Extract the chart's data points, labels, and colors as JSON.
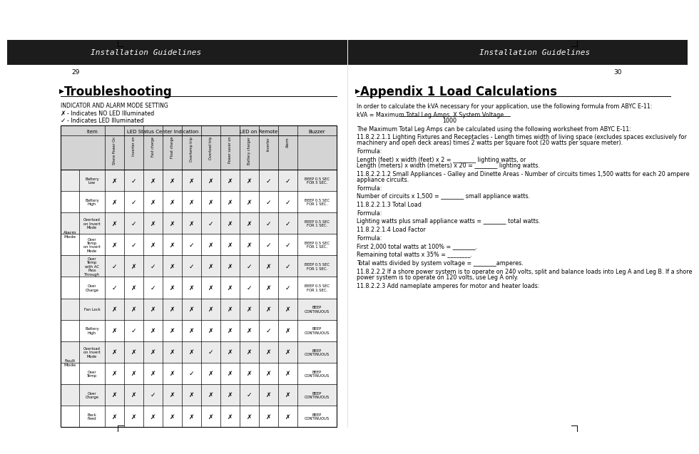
{
  "page_bg": "#ffffff",
  "header_bg": "#1c1c1c",
  "header_text": "#ffffff",
  "header_left": "Installation Guidelines",
  "header_right": "Installation Guidelines",
  "page_num_left": "29",
  "page_num_right": "30",
  "left_section_title": "Troubleshooting",
  "left_subtitle": "INDICATOR AND ALARM MODE SETTING",
  "left_legend1": "- Indicates NO LED Illuminated",
  "left_legend2": "- Indicates LED Illuminated",
  "right_section_title": "Appendix 1 Load Calculations",
  "right_body_lines": [
    {
      "text": "In order to calculate the kVA necessary for your application, use the following formula from ABYC E-11:",
      "indent": 0,
      "style": "normal"
    },
    {
      "text": "",
      "indent": 0,
      "style": "blank_small"
    },
    {
      "text": "kVA = Maximum Total Leg Amps. X  System Voltage",
      "indent": 0,
      "style": "normal"
    },
    {
      "text": "1000",
      "indent": 120,
      "style": "fraction_denom"
    },
    {
      "text": "",
      "indent": 0,
      "style": "blank_small"
    },
    {
      "text": "The Maximum Total Leg Amps can be calculated using the following worksheet from ABYC E-11:",
      "indent": 0,
      "style": "normal"
    },
    {
      "text": "",
      "indent": 0,
      "style": "blank_small"
    },
    {
      "text": "11.8.2.2.1.1     Lighting Fixtures and Receptacles - Length times width of living space (excludes spaces exclusively for machinery and open deck areas) times 2 watts per square foot (20 watts per square meter).",
      "indent": 0,
      "style": "normal"
    },
    {
      "text": "",
      "indent": 0,
      "style": "blank_small"
    },
    {
      "text": "Formula:",
      "indent": 0,
      "style": "normal"
    },
    {
      "text": "",
      "indent": 0,
      "style": "blank_small"
    },
    {
      "text": "Length (feet) x width (feet) x 2 = ________ lighting watts, or",
      "indent": 0,
      "style": "normal"
    },
    {
      "text": "Length (meters) x width (meters) x 20 = ________ lighting watts.",
      "indent": 0,
      "style": "normal"
    },
    {
      "text": "",
      "indent": 0,
      "style": "blank_small"
    },
    {
      "text": "11.8.2.2.1.2     Small Appliances - Galley and Dinette Areas - Number of circuits times 1,500 watts for each 20 ampere appliance circuits.",
      "indent": 0,
      "style": "normal"
    },
    {
      "text": "",
      "indent": 0,
      "style": "blank_small"
    },
    {
      "text": "Formula:",
      "indent": 0,
      "style": "normal"
    },
    {
      "text": "",
      "indent": 0,
      "style": "blank_small"
    },
    {
      "text": "Number of circuits x 1,500 = ________ small appliance watts.",
      "indent": 0,
      "style": "normal"
    },
    {
      "text": "",
      "indent": 0,
      "style": "blank_small"
    },
    {
      "text": "11.8.2.2.1.3    Total Load",
      "indent": 0,
      "style": "normal"
    },
    {
      "text": "",
      "indent": 0,
      "style": "blank_small"
    },
    {
      "text": "Formula:",
      "indent": 0,
      "style": "normal"
    },
    {
      "text": "",
      "indent": 0,
      "style": "blank_small"
    },
    {
      "text": "Lighting watts plus small appliance watts = ________ total watts.",
      "indent": 0,
      "style": "normal"
    },
    {
      "text": "",
      "indent": 0,
      "style": "blank_small"
    },
    {
      "text": "11.8.2.2.1.4    Load Factor",
      "indent": 0,
      "style": "normal"
    },
    {
      "text": "",
      "indent": 0,
      "style": "blank_small"
    },
    {
      "text": "Formula:",
      "indent": 0,
      "style": "normal"
    },
    {
      "text": "",
      "indent": 0,
      "style": "blank_small"
    },
    {
      "text": "First 2,000 total watts at 100% = ________.",
      "indent": 0,
      "style": "normal"
    },
    {
      "text": "",
      "indent": 0,
      "style": "blank_small"
    },
    {
      "text": "Remaining total watts x 35% = ________.",
      "indent": 0,
      "style": "normal"
    },
    {
      "text": "",
      "indent": 0,
      "style": "blank_small"
    },
    {
      "text": "Total watts divided by system voltage = ________amperes.",
      "indent": 0,
      "style": "normal"
    },
    {
      "text": "",
      "indent": 0,
      "style": "blank_small"
    },
    {
      "text": "11.8.2.2.2     If a shore power system is to operate on 240 volts, split and balance loads into Leg A and Leg B. If a shore power system is to operate on 120 volts, use Leg A only.",
      "indent": 0,
      "style": "normal"
    },
    {
      "text": "",
      "indent": 0,
      "style": "blank_small"
    },
    {
      "text": "11.8.2.2.3    Add nameplate amperes for motor and heater loads:",
      "indent": 0,
      "style": "normal"
    }
  ],
  "col_headers": [
    "Shore Power On",
    "Inverter on",
    "Fast charge",
    "Float charge",
    "Overtemp trip",
    "Overload trip",
    "Power saver on",
    "Battery charger",
    "Inverter",
    "Alarm"
  ],
  "alarm_rows": [
    {
      "item": "Battery\nLow",
      "values": [
        0,
        1,
        0,
        0,
        0,
        0,
        0,
        0,
        1,
        1
      ],
      "buzzer": "BEEP 0.5 SEC\nFOR 5 SEC."
    },
    {
      "item": "Battery\nHigh",
      "values": [
        0,
        1,
        0,
        0,
        0,
        0,
        0,
        0,
        1,
        1
      ],
      "buzzer": "BEEP 0.5 SEC\nFOR 1 SEC."
    },
    {
      "item": "Overload\non Invert\nMode",
      "values": [
        0,
        1,
        0,
        0,
        0,
        1,
        0,
        0,
        1,
        1
      ],
      "buzzer": "BEEP 0.5 SEC\nFOR 1 SEC."
    },
    {
      "item": "Over\nTemp\non Invert\nMode",
      "values": [
        0,
        1,
        0,
        0,
        1,
        0,
        0,
        0,
        1,
        1
      ],
      "buzzer": "BEEP 0.5 SEC\nFOR 1 SEC."
    },
    {
      "item": "Over\nTemp\nwith AC\nPass\nThrough",
      "values": [
        1,
        0,
        1,
        0,
        1,
        0,
        0,
        1,
        0,
        1
      ],
      "buzzer": "BEEP 0.5 SEC\nFOR 1 SEC."
    },
    {
      "item": "Over\nCharge",
      "values": [
        1,
        0,
        1,
        0,
        0,
        0,
        0,
        1,
        0,
        1
      ],
      "buzzer": "BEEP 0.5 SEC\nFOR 1 SEC."
    },
    {
      "item": "Fan Lock",
      "values": [
        0,
        0,
        0,
        0,
        0,
        0,
        0,
        0,
        0,
        0
      ],
      "buzzer": "BEEP\nCONTINUOUS"
    },
    {
      "item": "Battery\nHigh",
      "values": [
        0,
        1,
        0,
        0,
        0,
        0,
        0,
        0,
        1,
        0
      ],
      "buzzer": "BEEP\nCONTINUOUS"
    },
    {
      "item": "Overload\non Invert\nMode",
      "values": [
        0,
        0,
        0,
        0,
        0,
        1,
        0,
        0,
        0,
        0
      ],
      "buzzer": "BEEP\nCONTINUOUS"
    },
    {
      "item": "Over\nTemp",
      "values": [
        0,
        0,
        0,
        0,
        1,
        0,
        0,
        0,
        0,
        0
      ],
      "buzzer": "BEEP\nCONTINUOUS"
    },
    {
      "item": "Over\nCharge",
      "values": [
        0,
        0,
        1,
        0,
        0,
        0,
        0,
        1,
        0,
        0
      ],
      "buzzer": "BEEP\nCONTINUOUS"
    },
    {
      "item": "Back\nFeed",
      "values": [
        0,
        0,
        0,
        0,
        0,
        0,
        0,
        0,
        0,
        0
      ],
      "buzzer": "BEEP\nCONTINUOUS"
    }
  ],
  "mode_groups": [
    {
      "label": "Alarm\nMode",
      "start": 0,
      "end": 5
    },
    {
      "label": "Fault\nMode",
      "start": 6,
      "end": 11
    }
  ]
}
